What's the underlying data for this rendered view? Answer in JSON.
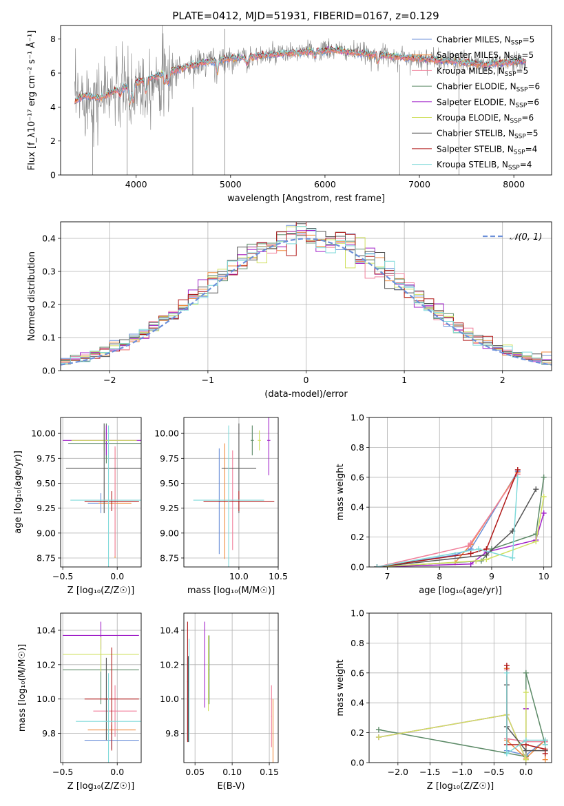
{
  "colors": [
    "#6b8fd9",
    "#f08a3c",
    "#f07f9a",
    "#5c8a67",
    "#a020c8",
    "#d0e060",
    "#555555",
    "#b01818",
    "#7fdada"
  ],
  "chart_data": [
    {
      "id": "spectrum",
      "type": "line",
      "title": "PLATE=0412, MJD=51931, FIBERID=0167, z=0.129",
      "xlabel": "wavelength [Angstrom, rest frame]",
      "ylabel": "Flux [f_λ10⁻¹⁷ erg cm⁻² s⁻¹ Å⁻¹]",
      "xlim": [
        3200,
        8400
      ],
      "ylim": [
        0,
        8.8
      ],
      "xticks": [
        4000,
        5000,
        6000,
        7000,
        8000
      ],
      "yticks": [
        0,
        2,
        4,
        6,
        8
      ],
      "grid": false,
      "legend": "top-right",
      "series": [
        {
          "name": "Chabrier MILES, N_SSP=5"
        },
        {
          "name": "Salpeter MILES, N_SSP=5"
        },
        {
          "name": "Kroupa MILES, N_SSP=5"
        },
        {
          "name": "Chabrier ELODIE, N_SSP=6"
        },
        {
          "name": "Salpeter ELODIE, N_SSP=6"
        },
        {
          "name": "Kroupa ELODIE, N_SSP=6"
        },
        {
          "name": "Chabrier STELIB, N_SSP=5"
        },
        {
          "name": "Salpeter STELIB, N_SSP=4"
        },
        {
          "name": "Kroupa STELIB, N_SSP=4"
        }
      ],
      "continuum": {
        "x": [
          3350,
          3450,
          3600,
          3800,
          3950,
          4100,
          4300,
          4500,
          4700,
          4900,
          5100,
          5300,
          5500,
          5700,
          5900,
          6100,
          6300,
          6500,
          6700,
          6900,
          7100,
          7300,
          7500,
          7700,
          7900,
          8100
        ],
        "y": [
          4.3,
          4.7,
          4.5,
          5.0,
          5.3,
          5.6,
          6.0,
          6.3,
          6.6,
          6.8,
          6.9,
          7.0,
          7.1,
          7.2,
          7.3,
          7.35,
          7.2,
          7.1,
          7.0,
          6.9,
          6.8,
          6.7,
          6.6,
          6.5,
          6.6,
          6.7
        ]
      }
    },
    {
      "id": "residuals",
      "type": "line",
      "xlabel": "(data-model)/error",
      "ylabel": "Normed distribution",
      "xlim": [
        -2.5,
        2.5
      ],
      "ylim": [
        0,
        0.45
      ],
      "xticks": [
        -2,
        -1,
        0,
        1,
        2
      ],
      "yticks": [
        0.0,
        0.1,
        0.2,
        0.3,
        0.4
      ],
      "grid": true,
      "legend": "top-right",
      "reference": {
        "name": "𝒩(0, 1)",
        "mean": 0,
        "sigma": 1
      },
      "bin_width": 0.1
    },
    {
      "id": "age-vs-Z",
      "type": "scatter",
      "xlabel": "Z [log₁₀(Z/Z☉)]",
      "ylabel": "age  [log₁₀(age/yr)]",
      "xlim": [
        -0.52,
        0.22
      ],
      "ylim": [
        8.66,
        10.16
      ],
      "xticks": [
        -0.5,
        0.0
      ],
      "yticks": [
        8.75,
        9.0,
        9.25,
        9.5,
        9.75,
        10.0
      ],
      "grid": true,
      "points": [
        {
          "series": 0,
          "x": -0.15,
          "y": 9.3,
          "xerr": 0.12,
          "yerr": 0.1
        },
        {
          "series": 0,
          "x": -0.1,
          "y": 9.9,
          "xerr": 0.02,
          "yerr": 0.15
        },
        {
          "series": 1,
          "x": -0.02,
          "y": 9.3,
          "xerr": 0.15,
          "yerr": 0.55
        },
        {
          "series": 2,
          "x": -0.02,
          "y": 9.32,
          "xerr": 0.2,
          "yerr": 0.55
        },
        {
          "series": 3,
          "x": -0.1,
          "y": 9.9,
          "xerr": 0.35,
          "yerr": 0.2
        },
        {
          "series": 4,
          "x": -0.1,
          "y": 9.93,
          "xerr": 0.4,
          "yerr": 0.15
        },
        {
          "series": 5,
          "x": -0.12,
          "y": 9.93,
          "xerr": 0.3,
          "yerr": 0.1
        },
        {
          "series": 6,
          "x": -0.12,
          "y": 9.65,
          "xerr": 0.35,
          "yerr": 0.45
        },
        {
          "series": 7,
          "x": -0.05,
          "y": 9.32,
          "xerr": 0.25,
          "yerr": 0.1
        },
        {
          "series": 8,
          "x": -0.08,
          "y": 9.33,
          "xerr": 0.35,
          "yerr": 0.75
        }
      ]
    },
    {
      "id": "age-vs-mass",
      "type": "scatter",
      "xlabel": "mass [log₁₀(M/M☉)]",
      "ylabel": "",
      "xlim": [
        9.3,
        10.5
      ],
      "ylim": [
        8.66,
        10.16
      ],
      "xticks": [
        10.0,
        10.5
      ],
      "yticks": [
        8.75,
        9.0,
        9.25,
        9.5,
        9.75,
        10.0
      ],
      "grid": true,
      "points": [
        {
          "series": 0,
          "x": 9.75,
          "y": 9.32,
          "xerr": 0.02,
          "yerr": 0.53
        },
        {
          "series": 1,
          "x": 9.82,
          "y": 9.32,
          "xerr": 0.02,
          "yerr": 0.58
        },
        {
          "series": 2,
          "x": 9.92,
          "y": 9.33,
          "xerr": 0.02,
          "yerr": 0.5
        },
        {
          "series": 3,
          "x": 10.17,
          "y": 9.93,
          "xerr": 0.02,
          "yerr": 0.15
        },
        {
          "series": 4,
          "x": 10.38,
          "y": 9.93,
          "xerr": 0.02,
          "yerr": 0.35
        },
        {
          "series": 5,
          "x": 10.26,
          "y": 9.93,
          "xerr": 0.02,
          "yerr": 0.1
        },
        {
          "series": 6,
          "x": 10.0,
          "y": 9.65,
          "xerr": 0.22,
          "yerr": 0.45
        },
        {
          "series": 7,
          "x": 10.0,
          "y": 9.32,
          "xerr": 0.45,
          "yerr": 0.1
        },
        {
          "series": 8,
          "x": 9.87,
          "y": 9.33,
          "xerr": 0.45,
          "yerr": 0.75
        }
      ]
    },
    {
      "id": "massweight-vs-age",
      "type": "line",
      "xlabel": "age  [log₁₀(age/yr)]",
      "ylabel": "mass weight",
      "xlim": [
        6.65,
        10.15
      ],
      "ylim": [
        0.0,
        1.0
      ],
      "xticks": [
        7,
        8,
        9,
        10
      ],
      "yticks": [
        0.0,
        0.2,
        0.4,
        0.6,
        0.8,
        1.0
      ],
      "grid": true,
      "series": [
        {
          "x": [
            6.8,
            8.3,
            8.6,
            9.5
          ],
          "y": [
            0.0,
            0.08,
            0.12,
            0.64
          ]
        },
        {
          "x": [
            6.8,
            8.3,
            8.6,
            9.5
          ],
          "y": [
            0.0,
            0.03,
            0.15,
            0.63
          ]
        },
        {
          "x": [
            6.8,
            8.55,
            8.6,
            9.5
          ],
          "y": [
            0.0,
            0.14,
            0.16,
            0.62
          ]
        },
        {
          "x": [
            6.8,
            8.8,
            9.0,
            9.85,
            10.0
          ],
          "y": [
            0.0,
            0.04,
            0.12,
            0.22,
            0.6
          ]
        },
        {
          "x": [
            6.8,
            8.6,
            8.9,
            9.85,
            10.0
          ],
          "y": [
            0.0,
            0.02,
            0.1,
            0.18,
            0.36
          ]
        },
        {
          "x": [
            6.8,
            8.7,
            8.9,
            9.85,
            10.0
          ],
          "y": [
            0.0,
            0.04,
            0.05,
            0.17,
            0.47
          ]
        },
        {
          "x": [
            6.8,
            8.9,
            9.4,
            9.85
          ],
          "y": [
            0.0,
            0.08,
            0.24,
            0.52
          ]
        },
        {
          "x": [
            6.8,
            8.6,
            8.9,
            9.5
          ],
          "y": [
            0.0,
            0.09,
            0.12,
            0.65
          ]
        },
        {
          "x": [
            6.8,
            8.75,
            9.4,
            9.5
          ],
          "y": [
            0.0,
            0.12,
            0.06,
            0.6
          ]
        }
      ]
    },
    {
      "id": "mass-vs-Z",
      "type": "scatter",
      "xlabel": "Z [log₁₀(Z/Z☉)]",
      "ylabel": "mass [log₁₀(M/M☉)]",
      "xlim": [
        -0.52,
        0.22
      ],
      "ylim": [
        9.63,
        10.5
      ],
      "xticks": [
        -0.5,
        0.0
      ],
      "yticks": [
        9.8,
        10.0,
        10.2,
        10.4
      ],
      "grid": true,
      "points": [
        {
          "series": 0,
          "x": -0.05,
          "y": 9.76,
          "xerr": 0.25,
          "yerr": 0.05
        },
        {
          "series": 1,
          "x": -0.05,
          "y": 9.82,
          "xerr": 0.22,
          "yerr": 0.03
        },
        {
          "series": 2,
          "x": -0.02,
          "y": 9.93,
          "xerr": 0.2,
          "yerr": 0.15
        },
        {
          "series": 3,
          "x": -0.15,
          "y": 10.17,
          "xerr": 0.35,
          "yerr": 0.2
        },
        {
          "series": 4,
          "x": -0.15,
          "y": 10.37,
          "xerr": 0.35,
          "yerr": 0.08
        },
        {
          "series": 5,
          "x": -0.15,
          "y": 10.26,
          "xerr": 0.35,
          "yerr": 0.1
        },
        {
          "series": 6,
          "x": -0.1,
          "y": 10.0,
          "xerr": 0.02,
          "yerr": 0.24
        },
        {
          "series": 7,
          "x": -0.05,
          "y": 10.0,
          "xerr": 0.25,
          "yerr": 0.3
        },
        {
          "series": 8,
          "x": -0.08,
          "y": 9.87,
          "xerr": 0.3,
          "yerr": 0.28
        }
      ]
    },
    {
      "id": "mass-vs-ebv",
      "type": "scatter",
      "xlabel": "E(B-V)",
      "ylabel": "",
      "xlim": [
        0.035,
        0.162
      ],
      "ylim": [
        9.63,
        10.5
      ],
      "xticks": [
        0.05,
        0.1,
        0.15
      ],
      "yticks": [
        9.8,
        10.0,
        10.2,
        10.4
      ],
      "grid": true,
      "points": [
        {
          "series": 0,
          "x": 0.04,
          "y": 10.0,
          "xerr": 0.0005,
          "yerr": 0.24
        },
        {
          "series": 1,
          "x": 0.155,
          "y": 9.8,
          "xerr": 0.0005,
          "yerr": 0.2
        },
        {
          "series": 2,
          "x": 0.153,
          "y": 9.9,
          "xerr": 0.0005,
          "yerr": 0.18
        },
        {
          "series": 3,
          "x": 0.069,
          "y": 10.17,
          "xerr": 0.0005,
          "yerr": 0.2
        },
        {
          "series": 4,
          "x": 0.063,
          "y": 10.2,
          "xerr": 0.0005,
          "yerr": 0.25
        },
        {
          "series": 5,
          "x": 0.068,
          "y": 10.15,
          "xerr": 0.0005,
          "yerr": 0.22
        },
        {
          "series": 6,
          "x": 0.041,
          "y": 10.0,
          "xerr": 0.0005,
          "yerr": 0.25
        },
        {
          "series": 7,
          "x": 0.04,
          "y": 10.1,
          "xerr": 0.0005,
          "yerr": 0.35
        },
        {
          "series": 8,
          "x": 0.042,
          "y": 10.05,
          "xerr": 0.0005,
          "yerr": 0.3
        }
      ]
    },
    {
      "id": "massweight-vs-Z",
      "type": "line",
      "xlabel": "Z [log₁₀(Z/Z☉)]",
      "ylabel": "mass weight",
      "xlim": [
        -2.45,
        0.4
      ],
      "ylim": [
        0.0,
        1.0
      ],
      "xticks": [
        -2.0,
        -1.5,
        -1.0,
        -0.5,
        0.0
      ],
      "yticks": [
        0.0,
        0.2,
        0.4,
        0.6,
        0.8,
        1.0
      ],
      "grid": true,
      "series": [
        {
          "x": [
            -0.3,
            -0.3,
            0.0,
            0.3,
            0.3
          ],
          "y": [
            0.63,
            0.08,
            0.05,
            0.15,
            0.14
          ]
        },
        {
          "x": [
            -0.3,
            -0.3,
            0.0,
            0.3,
            0.3
          ],
          "y": [
            0.63,
            0.15,
            0.03,
            0.15,
            0.02
          ]
        },
        {
          "x": [
            -0.3,
            -0.3,
            0.0,
            0.3
          ],
          "y": [
            0.62,
            0.16,
            0.14,
            0.14
          ]
        },
        {
          "x": [
            -2.3,
            0.0,
            0.0,
            0.3
          ],
          "y": [
            0.22,
            0.04,
            0.6,
            0.12
          ]
        },
        {
          "x": [
            -2.3,
            -0.3,
            0.0,
            0.0
          ],
          "y": [
            0.17,
            0.32,
            0.02,
            0.36
          ]
        },
        {
          "x": [
            -2.3,
            -0.3,
            0.0,
            0.0
          ],
          "y": [
            0.17,
            0.32,
            0.02,
            0.47
          ]
        },
        {
          "x": [
            -0.3,
            -0.3,
            0.0,
            0.3
          ],
          "y": [
            0.52,
            0.24,
            0.08,
            0.08
          ]
        },
        {
          "x": [
            -0.3,
            -0.3,
            0.0,
            0.3,
            0.3
          ],
          "y": [
            0.65,
            0.12,
            0.12,
            0.09,
            0.06
          ]
        },
        {
          "x": [
            -0.3,
            -0.3,
            0.0,
            0.3,
            0.3
          ],
          "y": [
            0.6,
            0.06,
            0.15,
            0.15,
            0.12
          ]
        }
      ]
    }
  ]
}
